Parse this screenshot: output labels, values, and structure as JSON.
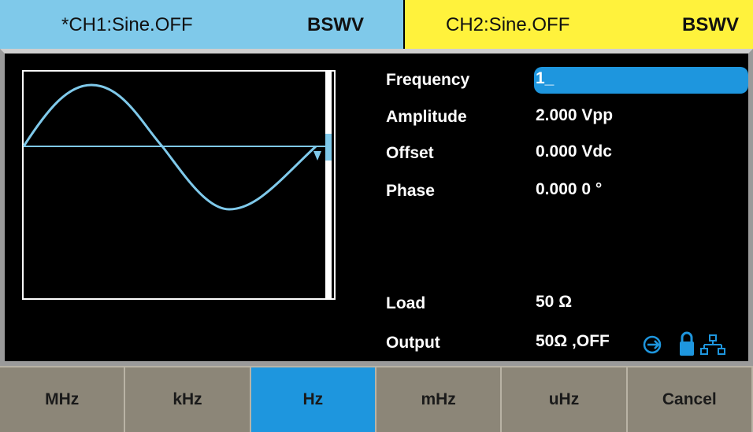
{
  "header": {
    "ch1_title": "*CH1:Sine.OFF",
    "ch1_mode": "BSWV",
    "ch2_title": "CH2:Sine.OFF",
    "ch2_mode": "BSWV"
  },
  "params": [
    {
      "label": "Frequency",
      "value": "1_"
    },
    {
      "label": "Amplitude",
      "value": "2.000 Vpp"
    },
    {
      "label": "Offset",
      "value": "0.000 Vdc"
    },
    {
      "label": "Phase",
      "value": "0.000 0 °"
    },
    {
      "label": "Load",
      "value": "50 Ω"
    },
    {
      "label": "Output",
      "value": "50Ω ,OFF"
    }
  ],
  "softkeys": [
    "MHz",
    "kHz",
    "Hz",
    "mHz",
    "uHz",
    "Cancel"
  ]
}
